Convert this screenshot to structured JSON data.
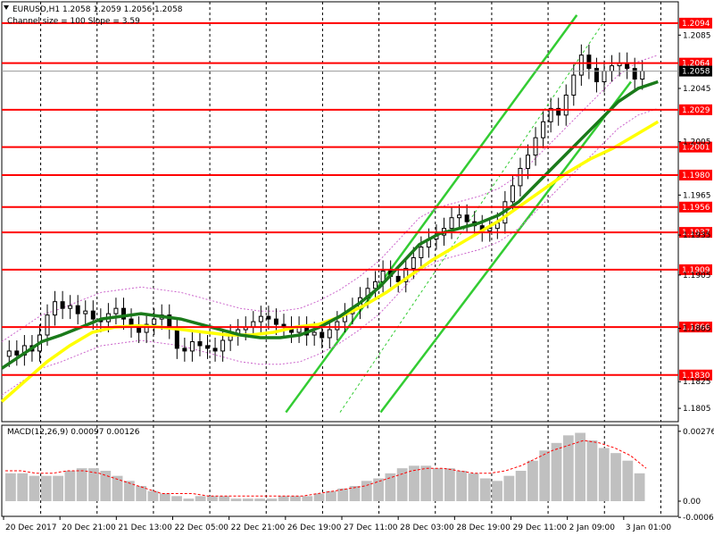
{
  "header": {
    "symbol_line": "EURUSD,H1  1.2058 1.2059 1.2056 1.2058",
    "channel_line": "Channel size = 100 Slope = 3.59"
  },
  "colors": {
    "level": "#ff0000",
    "candle": "#000000",
    "ma_fast": "#1a7a1a",
    "ma_slow": "#ffff00",
    "channel": "#33cc33",
    "envelope": "#cc66cc",
    "macd_hist": "#c0c0c0",
    "macd_signal": "#ff0000",
    "current_price": "#000000"
  },
  "chart_data": [
    {
      "type": "candlestick",
      "name": "EURUSD H1",
      "ylim": [
        1.1795,
        1.211
      ],
      "y_ticks": [
        1.2085,
        1.2045,
        1.2005,
        1.1965,
        1.1935,
        1.1905,
        1.1865,
        1.1825,
        1.1805
      ],
      "x_ticks": [
        "20 Dec 2017",
        "20 Dec 21:00",
        "21 Dec 13:00",
        "22 Dec 05:00",
        "22 Dec 21:00",
        "26 Dec 19:00",
        "27 Dec 11:00",
        "28 Dec 03:00",
        "28 Dec 19:00",
        "29 Dec 11:00",
        "2 Jan 09:00",
        "3 Jan 01:00"
      ],
      "levels": [
        1.2094,
        1.2064,
        1.2029,
        1.2001,
        1.198,
        1.1956,
        1.1937,
        1.1909,
        1.1866,
        1.183
      ],
      "current_price": 1.2058,
      "close_series": [
        1.1848,
        1.1845,
        1.1852,
        1.1848,
        1.186,
        1.1875,
        1.1885,
        1.188,
        1.1882,
        1.1876,
        1.1878,
        1.1872,
        1.187,
        1.1876,
        1.188,
        1.1872,
        1.1866,
        1.1862,
        1.1868,
        1.1872,
        1.1875,
        1.1865,
        1.185,
        1.1848,
        1.1855,
        1.1852,
        1.185,
        1.1848,
        1.1856,
        1.186,
        1.1864,
        1.1866,
        1.187,
        1.1874,
        1.1872,
        1.1868,
        1.1866,
        1.1862,
        1.1866,
        1.186,
        1.1862,
        1.1858,
        1.1864,
        1.187,
        1.1876,
        1.188,
        1.1888,
        1.1895,
        1.19,
        1.1908,
        1.1904,
        1.19,
        1.191,
        1.1918,
        1.1926,
        1.1932,
        1.1935,
        1.194,
        1.1948,
        1.195,
        1.1945,
        1.1942,
        1.1938,
        1.194,
        1.1944,
        1.196,
        1.1972,
        1.1985,
        1.1995,
        1.2008,
        1.202,
        1.203,
        1.2025,
        1.204,
        1.2055,
        1.207,
        1.206,
        1.205,
        1.2058,
        1.2062,
        1.2064,
        1.206,
        1.2052,
        1.2058
      ],
      "ma_fast": [
        1.1835,
        1.1845,
        1.1855,
        1.186,
        1.1866,
        1.1872,
        1.1874,
        1.1876,
        1.1874,
        1.1872,
        1.1868,
        1.1864,
        1.186,
        1.1858,
        1.1858,
        1.186,
        1.1866,
        1.1874,
        1.1884,
        1.1896,
        1.1912,
        1.1928,
        1.1936,
        1.194,
        1.1944,
        1.195,
        1.196,
        1.1975,
        1.199,
        1.2005,
        1.202,
        1.2035,
        1.2045,
        1.205
      ],
      "ma_slow": [
        1.181,
        1.1825,
        1.184,
        1.1852,
        1.1862,
        1.1866,
        1.1867,
        1.1866,
        1.1864,
        1.1862,
        1.186,
        1.186,
        1.1862,
        1.1866,
        1.1868,
        1.1874,
        1.1882,
        1.1892,
        1.1904,
        1.1916,
        1.1926,
        1.1936,
        1.1946,
        1.1958,
        1.197,
        1.1982,
        1.1992,
        1.2,
        1.201,
        1.202
      ],
      "channel_lines": [
        {
          "from": [
            1.1802,
            0.42
          ],
          "to": [
            1.21,
            0.85
          ]
        },
        {
          "from": [
            1.1802,
            0.56
          ],
          "to": [
            1.205,
            0.93
          ]
        },
        {
          "from": [
            1.1802,
            0.5
          ],
          "to": [
            1.2095,
            0.89
          ]
        }
      ]
    },
    {
      "type": "bar",
      "name": "MACD(12,26,9) 0.00097 0.00126",
      "title": "MACD(12,26,9) 0.00097 0.00126",
      "ylim": [
        -0.0006,
        0.003
      ],
      "y_ticks": [
        0.00276,
        0.0,
        -0.00064
      ],
      "histogram": [
        0.0011,
        0.0011,
        0.001,
        0.001,
        0.001,
        0.0012,
        0.0013,
        0.0013,
        0.0012,
        0.001,
        0.0008,
        0.0006,
        0.0004,
        0.0003,
        0.0002,
        0.0001,
        0.0002,
        0.0002,
        0.0002,
        0.0001,
        0.0001,
        0.0001,
        0.0001,
        0.0002,
        0.0002,
        0.0002,
        0.0003,
        0.0004,
        0.0005,
        0.0006,
        0.0008,
        0.0009,
        0.0011,
        0.0013,
        0.0014,
        0.0014,
        0.0013,
        0.0013,
        0.0012,
        0.0011,
        0.0009,
        0.0008,
        0.001,
        0.0012,
        0.0016,
        0.002,
        0.0023,
        0.0026,
        0.0027,
        0.0024,
        0.0021,
        0.0019,
        0.0016,
        0.0011
      ],
      "signal": [
        0.0012,
        0.0012,
        0.0011,
        0.0011,
        0.0012,
        0.0012,
        0.0011,
        0.0009,
        0.0007,
        0.0005,
        0.0003,
        0.0003,
        0.0003,
        0.0002,
        0.0002,
        0.0002,
        0.0002,
        0.0002,
        0.0002,
        0.0002,
        0.0003,
        0.0004,
        0.0005,
        0.0006,
        0.0008,
        0.001,
        0.0012,
        0.0013,
        0.0013,
        0.0012,
        0.0011,
        0.0011,
        0.0012,
        0.0014,
        0.0017,
        0.002,
        0.0022,
        0.0024,
        0.0023,
        0.0021,
        0.0018,
        0.0013
      ]
    }
  ]
}
